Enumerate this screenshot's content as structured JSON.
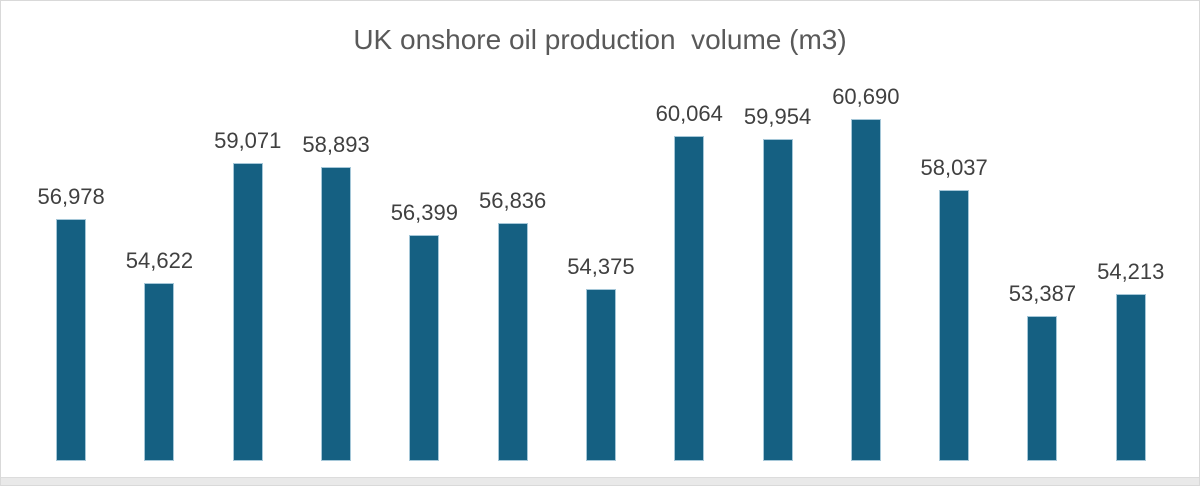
{
  "chart_data": {
    "type": "bar",
    "title": "UK onshore oil production  volume (m3)",
    "categories": [],
    "values": [
      56978,
      54622,
      59071,
      58893,
      56399,
      56836,
      54375,
      60064,
      59954,
      60690,
      58037,
      53387,
      54213
    ],
    "data_labels": [
      "56,978",
      "54,622",
      "59,071",
      "58,893",
      "56,399",
      "56,836",
      "54,375",
      "60,064",
      "59,954",
      "60,690",
      "58,037",
      "53,387",
      "54,213"
    ],
    "xlabel": "",
    "ylabel": "",
    "ylim": [
      48000,
      62000
    ],
    "grid": false,
    "legend": false,
    "data_labels_shown": true,
    "bar_color": "#156082",
    "bar_edge_color": "#a5c7d8",
    "title_color": "#595959",
    "label_color": "#404040"
  }
}
